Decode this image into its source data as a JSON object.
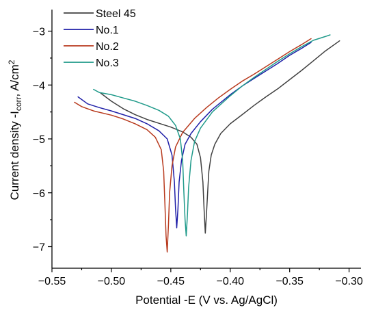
{
  "chart_data": {
    "type": "line",
    "xlabel": "Potential -E (V vs. Ag/AgCl)",
    "ylabel_main": "Current density -I",
    "ylabel_sub": "corr",
    "ylabel_unit": ", A/cm",
    "ylabel_sup": "2",
    "xlim": [
      -0.55,
      -0.29
    ],
    "ylim": [
      -7.4,
      -2.6
    ],
    "xticks": [
      -0.55,
      -0.5,
      -0.45,
      -0.4,
      -0.35,
      -0.3
    ],
    "xtick_labels": [
      "−0.55",
      "−0.50",
      "−0.45",
      "−0.40",
      "−0.35",
      "−0.30"
    ],
    "yticks": [
      -3,
      -4,
      -5,
      -6,
      -7
    ],
    "ytick_labels": [
      "−3",
      "−4",
      "−5",
      "−6",
      "−7"
    ],
    "legend_position": "top-left",
    "series": [
      {
        "name": "Steel 45",
        "color": "#404040",
        "points": [
          [
            -0.509,
            -4.15
          ],
          [
            -0.5,
            -4.3
          ],
          [
            -0.49,
            -4.44
          ],
          [
            -0.48,
            -4.55
          ],
          [
            -0.47,
            -4.64
          ],
          [
            -0.46,
            -4.71
          ],
          [
            -0.45,
            -4.78
          ],
          [
            -0.44,
            -4.87
          ],
          [
            -0.433,
            -4.97
          ],
          [
            -0.428,
            -5.1
          ],
          [
            -0.425,
            -5.35
          ],
          [
            -0.423,
            -5.8
          ],
          [
            -0.422,
            -6.3
          ],
          [
            -0.421,
            -6.75
          ],
          [
            -0.42,
            -6.4
          ],
          [
            -0.419,
            -6.0
          ],
          [
            -0.418,
            -5.6
          ],
          [
            -0.416,
            -5.3
          ],
          [
            -0.413,
            -5.1
          ],
          [
            -0.408,
            -4.9
          ],
          [
            -0.4,
            -4.72
          ],
          [
            -0.39,
            -4.55
          ],
          [
            -0.38,
            -4.38
          ],
          [
            -0.37,
            -4.22
          ],
          [
            -0.36,
            -4.07
          ],
          [
            -0.35,
            -3.9
          ],
          [
            -0.34,
            -3.73
          ],
          [
            -0.33,
            -3.55
          ],
          [
            -0.32,
            -3.37
          ],
          [
            -0.308,
            -3.18
          ]
        ]
      },
      {
        "name": "No.1",
        "color": "#1f1fa8",
        "points": [
          [
            -0.528,
            -4.22
          ],
          [
            -0.52,
            -4.35
          ],
          [
            -0.51,
            -4.42
          ],
          [
            -0.5,
            -4.48
          ],
          [
            -0.49,
            -4.55
          ],
          [
            -0.48,
            -4.62
          ],
          [
            -0.47,
            -4.72
          ],
          [
            -0.46,
            -4.85
          ],
          [
            -0.453,
            -5.0
          ],
          [
            -0.449,
            -5.3
          ],
          [
            -0.447,
            -5.8
          ],
          [
            -0.446,
            -6.3
          ],
          [
            -0.445,
            -6.65
          ],
          [
            -0.444,
            -6.3
          ],
          [
            -0.443,
            -5.8
          ],
          [
            -0.441,
            -5.4
          ],
          [
            -0.438,
            -5.1
          ],
          [
            -0.433,
            -4.9
          ],
          [
            -0.425,
            -4.68
          ],
          [
            -0.415,
            -4.45
          ],
          [
            -0.4,
            -4.18
          ],
          [
            -0.39,
            -4.02
          ],
          [
            -0.38,
            -3.88
          ],
          [
            -0.37,
            -3.74
          ],
          [
            -0.36,
            -3.6
          ],
          [
            -0.35,
            -3.45
          ],
          [
            -0.34,
            -3.32
          ],
          [
            -0.332,
            -3.21
          ]
        ]
      },
      {
        "name": "No.2",
        "color": "#b83a1e",
        "points": [
          [
            -0.531,
            -4.32
          ],
          [
            -0.525,
            -4.4
          ],
          [
            -0.515,
            -4.48
          ],
          [
            -0.5,
            -4.56
          ],
          [
            -0.49,
            -4.63
          ],
          [
            -0.48,
            -4.72
          ],
          [
            -0.47,
            -4.83
          ],
          [
            -0.463,
            -4.97
          ],
          [
            -0.458,
            -5.2
          ],
          [
            -0.456,
            -5.6
          ],
          [
            -0.455,
            -6.2
          ],
          [
            -0.454,
            -6.8
          ],
          [
            -0.453,
            -7.1
          ],
          [
            -0.452,
            -6.6
          ],
          [
            -0.451,
            -6.0
          ],
          [
            -0.449,
            -5.5
          ],
          [
            -0.446,
            -5.15
          ],
          [
            -0.44,
            -4.88
          ],
          [
            -0.43,
            -4.62
          ],
          [
            -0.42,
            -4.42
          ],
          [
            -0.41,
            -4.24
          ],
          [
            -0.4,
            -4.08
          ],
          [
            -0.39,
            -3.93
          ],
          [
            -0.38,
            -3.8
          ],
          [
            -0.37,
            -3.66
          ],
          [
            -0.36,
            -3.52
          ],
          [
            -0.35,
            -3.38
          ],
          [
            -0.34,
            -3.25
          ],
          [
            -0.332,
            -3.14
          ]
        ]
      },
      {
        "name": "No.3",
        "color": "#1f9a8a",
        "points": [
          [
            -0.515,
            -4.08
          ],
          [
            -0.51,
            -4.14
          ],
          [
            -0.5,
            -4.18
          ],
          [
            -0.49,
            -4.24
          ],
          [
            -0.48,
            -4.3
          ],
          [
            -0.47,
            -4.38
          ],
          [
            -0.46,
            -4.47
          ],
          [
            -0.452,
            -4.58
          ],
          [
            -0.446,
            -4.75
          ],
          [
            -0.442,
            -5.0
          ],
          [
            -0.44,
            -5.4
          ],
          [
            -0.439,
            -6.0
          ],
          [
            -0.438,
            -6.5
          ],
          [
            -0.437,
            -6.8
          ],
          [
            -0.436,
            -6.4
          ],
          [
            -0.435,
            -5.9
          ],
          [
            -0.433,
            -5.4
          ],
          [
            -0.43,
            -5.05
          ],
          [
            -0.425,
            -4.8
          ],
          [
            -0.415,
            -4.5
          ],
          [
            -0.4,
            -4.2
          ],
          [
            -0.39,
            -4.02
          ],
          [
            -0.38,
            -3.86
          ],
          [
            -0.37,
            -3.71
          ],
          [
            -0.36,
            -3.56
          ],
          [
            -0.35,
            -3.42
          ],
          [
            -0.34,
            -3.29
          ],
          [
            -0.33,
            -3.17
          ],
          [
            -0.32,
            -3.1
          ],
          [
            -0.316,
            -3.07
          ]
        ]
      }
    ]
  }
}
